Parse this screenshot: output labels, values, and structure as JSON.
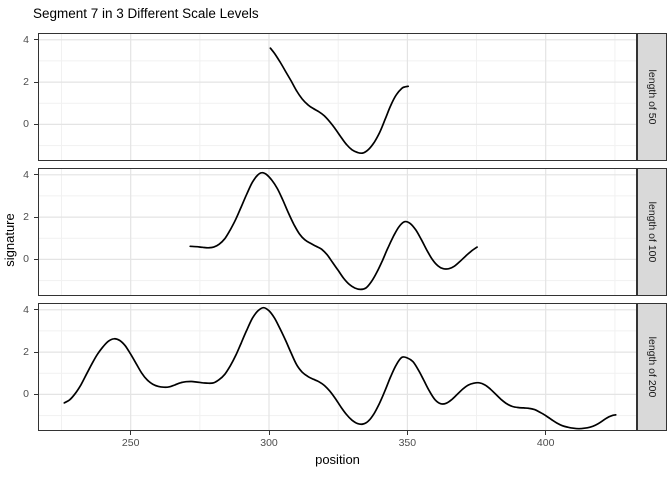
{
  "chart_data": {
    "type": "line",
    "title": "Segment 7 in 3 Different Scale Levels",
    "xlabel": "position",
    "ylabel": "signature",
    "xlim": [
      216.5,
      433
    ],
    "ylim": [
      -1.73,
      4.32
    ],
    "x_major_ticks": [
      250,
      300,
      350,
      400
    ],
    "x_minor_ticks": [
      225,
      275,
      325,
      375,
      425
    ],
    "y_major_ticks": [
      4,
      2,
      0
    ],
    "y_minor_ticks": [
      3,
      1,
      -1
    ],
    "grid": "on",
    "legend": "none",
    "styles": {
      "line_color": "#000000",
      "line_width": 1.7,
      "grid_major_color": "#e4e4e4",
      "grid_minor_color": "#f1f1f1",
      "panel_bg": "#ffffff",
      "panel_border": "#333333",
      "strip_bg": "#d9d9d9",
      "tick_label_color": "#4d4d4d"
    },
    "facets": [
      {
        "label": "length of 50",
        "x": [
          300.5,
          302,
          304,
          306,
          308,
          310,
          312,
          314,
          316,
          318,
          320,
          322,
          324,
          326,
          328,
          330,
          332,
          334,
          336,
          338,
          340,
          342,
          344,
          346,
          348,
          349,
          350.3
        ],
        "y": [
          3.6,
          3.35,
          2.95,
          2.5,
          2.05,
          1.58,
          1.2,
          0.93,
          0.75,
          0.6,
          0.4,
          0.12,
          -0.22,
          -0.6,
          -0.95,
          -1.2,
          -1.33,
          -1.35,
          -1.18,
          -0.85,
          -0.38,
          0.25,
          0.9,
          1.4,
          1.7,
          1.77,
          1.8
        ]
      },
      {
        "label": "length of 100",
        "x": [
          271.5,
          274,
          276,
          278,
          280,
          282,
          284,
          286,
          288,
          290,
          292,
          294,
          296,
          297.5,
          299,
          301,
          303,
          305,
          307,
          309,
          311,
          313,
          315,
          317,
          319,
          321,
          323,
          325,
          327,
          329,
          331,
          333,
          335,
          337,
          339,
          341,
          343,
          345,
          347,
          349,
          351,
          353,
          355,
          357,
          359,
          361,
          363,
          365,
          367,
          369,
          371,
          373,
          375.2
        ],
        "y": [
          0.62,
          0.6,
          0.57,
          0.55,
          0.58,
          0.72,
          0.98,
          1.4,
          1.9,
          2.5,
          3.1,
          3.65,
          4.0,
          4.1,
          4.02,
          3.75,
          3.35,
          2.8,
          2.2,
          1.65,
          1.2,
          0.92,
          0.76,
          0.62,
          0.48,
          0.22,
          -0.15,
          -0.52,
          -0.9,
          -1.18,
          -1.35,
          -1.42,
          -1.35,
          -1.05,
          -0.6,
          -0.05,
          0.55,
          1.1,
          1.55,
          1.78,
          1.7,
          1.4,
          0.95,
          0.45,
          0.0,
          -0.3,
          -0.44,
          -0.44,
          -0.32,
          -0.1,
          0.15,
          0.38,
          0.58
        ]
      },
      {
        "label": "length of 200",
        "x": [
          226,
          228,
          230,
          232,
          234,
          236,
          238,
          240,
          242,
          244,
          246,
          248,
          250,
          252,
          254,
          256,
          258,
          260,
          262,
          264,
          266,
          268,
          270,
          272,
          274,
          276,
          278,
          280,
          282,
          284,
          286,
          288,
          290,
          292,
          294,
          296,
          298,
          300,
          302,
          304,
          306,
          308,
          310,
          312,
          314,
          316,
          318,
          320,
          322,
          324,
          326,
          328,
          330,
          332,
          334,
          336,
          338,
          340,
          342,
          344,
          346,
          348,
          350,
          352,
          354,
          356,
          358,
          360,
          362,
          364,
          366,
          368,
          370,
          372,
          374,
          376,
          378,
          380,
          382,
          384,
          386,
          388,
          390,
          392,
          394,
          396,
          398,
          400,
          402,
          404,
          406,
          408,
          410,
          412,
          414,
          416,
          418,
          420,
          422,
          424,
          425.3
        ],
        "y": [
          -0.4,
          -0.25,
          0.05,
          0.45,
          0.95,
          1.45,
          1.9,
          2.25,
          2.52,
          2.63,
          2.55,
          2.3,
          1.9,
          1.45,
          1.0,
          0.68,
          0.48,
          0.38,
          0.34,
          0.36,
          0.45,
          0.55,
          0.6,
          0.61,
          0.58,
          0.55,
          0.53,
          0.55,
          0.7,
          0.95,
          1.35,
          1.85,
          2.45,
          3.05,
          3.6,
          3.95,
          4.1,
          3.95,
          3.6,
          3.1,
          2.55,
          1.95,
          1.4,
          1.05,
          0.85,
          0.72,
          0.6,
          0.42,
          0.15,
          -0.2,
          -0.6,
          -0.95,
          -1.22,
          -1.38,
          -1.4,
          -1.25,
          -0.9,
          -0.4,
          0.2,
          0.85,
          1.4,
          1.75,
          1.72,
          1.55,
          1.15,
          0.65,
          0.15,
          -0.25,
          -0.44,
          -0.42,
          -0.25,
          0.0,
          0.25,
          0.44,
          0.53,
          0.55,
          0.45,
          0.25,
          0.0,
          -0.25,
          -0.45,
          -0.57,
          -0.62,
          -0.64,
          -0.66,
          -0.72,
          -0.85,
          -1.0,
          -1.18,
          -1.35,
          -1.48,
          -1.55,
          -1.6,
          -1.62,
          -1.6,
          -1.55,
          -1.45,
          -1.3,
          -1.12,
          -1.0,
          -0.97
        ]
      }
    ]
  }
}
